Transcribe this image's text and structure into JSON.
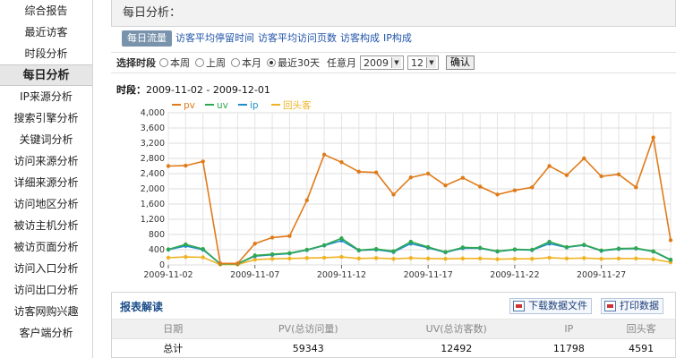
{
  "sidebar": {
    "items": [
      {
        "label": "综合报告"
      },
      {
        "label": "最近访客"
      },
      {
        "label": "时段分析"
      },
      {
        "label": "每日分析",
        "active": true
      },
      {
        "label": "IP来源分析"
      },
      {
        "label": "搜索引擎分析"
      },
      {
        "label": "关键词分析"
      },
      {
        "label": "访问来源分析"
      },
      {
        "label": "详细来源分析"
      },
      {
        "label": "访问地区分析"
      },
      {
        "label": "被访主机分析"
      },
      {
        "label": "被访页面分析"
      },
      {
        "label": "访问入口分析"
      },
      {
        "label": "访问出口分析"
      },
      {
        "label": "访客网购兴趣"
      },
      {
        "label": "客户端分析"
      }
    ]
  },
  "panel": {
    "title": "每日分析：",
    "tabs": [
      {
        "label": "每日流量",
        "active": true
      },
      {
        "label": "访客平均停留时间"
      },
      {
        "label": "访客平均访问页数"
      },
      {
        "label": "访客构成"
      },
      {
        "label": "IP构成"
      }
    ]
  },
  "filters": {
    "label": "选择时段",
    "options": [
      {
        "label": "本周",
        "checked": false
      },
      {
        "label": "上周",
        "checked": false
      },
      {
        "label": "本月",
        "checked": false
      },
      {
        "label": "最近30天",
        "checked": true
      }
    ],
    "month_label": "任意月",
    "year_value": "2009",
    "month_value": "12",
    "confirm_label": "确认"
  },
  "period": {
    "label": "时段：",
    "range": "2009-11-02 - 2009-12-01"
  },
  "chart_data": {
    "type": "line",
    "ylim": [
      0,
      4000
    ],
    "yticks": [
      "0",
      "400",
      "800",
      "1,200",
      "1,600",
      "2,000",
      "2,400",
      "2,800",
      "3,200",
      "3,600",
      "4,000"
    ],
    "xtick_labels": [
      "2009-11-02",
      "2009-11-07",
      "2009-11-12",
      "2009-11-17",
      "2009-11-22",
      "2009-11-27"
    ],
    "xtick_index": [
      0,
      5,
      10,
      15,
      20,
      25
    ],
    "grid": true,
    "legend_position": "top-left",
    "series": [
      {
        "name": "pv",
        "color": "#e07b1a",
        "values": [
          2600,
          2610,
          2720,
          40,
          40,
          560,
          720,
          760,
          1700,
          2900,
          2700,
          2450,
          2430,
          1850,
          2300,
          2400,
          2090,
          2290,
          2060,
          1850,
          1960,
          2040,
          2600,
          2360,
          2800,
          2330,
          2380,
          2040,
          3350,
          650
        ]
      },
      {
        "name": "uv",
        "color": "#2fa84f",
        "values": [
          410,
          540,
          420,
          30,
          30,
          250,
          280,
          310,
          400,
          520,
          700,
          390,
          420,
          360,
          610,
          470,
          340,
          460,
          450,
          360,
          410,
          400,
          610,
          470,
          530,
          380,
          430,
          440,
          360,
          140
        ]
      },
      {
        "name": "ip",
        "color": "#1f8fc8",
        "values": [
          400,
          500,
          400,
          28,
          28,
          230,
          265,
          300,
          390,
          510,
          640,
          380,
          400,
          340,
          560,
          450,
          330,
          440,
          440,
          350,
          400,
          390,
          560,
          460,
          520,
          370,
          420,
          430,
          350,
          130
        ]
      },
      {
        "name": "回头客",
        "color": "#f0b324",
        "values": [
          190,
          210,
          200,
          10,
          10,
          140,
          160,
          170,
          180,
          190,
          210,
          170,
          180,
          160,
          180,
          170,
          160,
          170,
          170,
          150,
          160,
          160,
          190,
          170,
          180,
          160,
          170,
          170,
          150,
          70
        ]
      }
    ]
  },
  "report": {
    "title": "报表解读",
    "download_label": "下载数据文件",
    "print_label": "打印数据"
  },
  "table": {
    "headers": [
      "日期",
      "PV(总访问量)",
      "UV(总访客数)",
      "IP",
      "回头客"
    ],
    "rows": [
      [
        "总计",
        "59343",
        "12492",
        "11798",
        "4591"
      ]
    ]
  }
}
